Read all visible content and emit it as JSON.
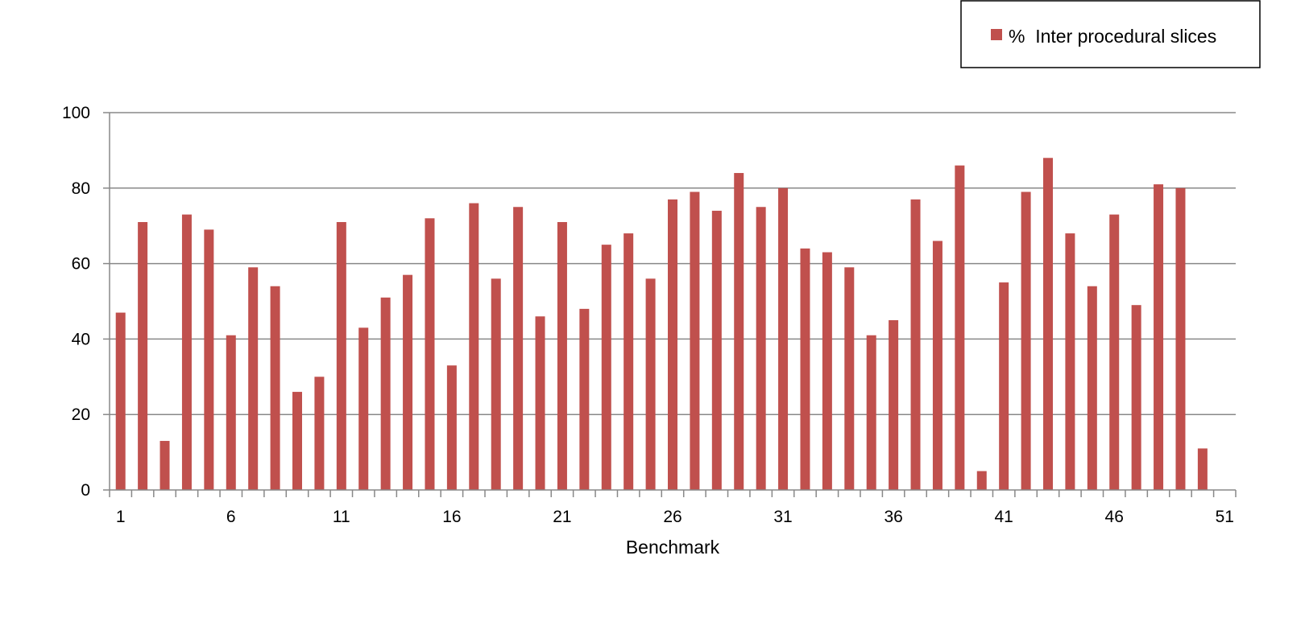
{
  "chart_data": {
    "type": "bar",
    "title": "",
    "xlabel": "Benchmark",
    "ylabel": "",
    "categories": [
      1,
      2,
      3,
      4,
      5,
      6,
      7,
      8,
      9,
      10,
      11,
      12,
      13,
      14,
      15,
      16,
      17,
      18,
      19,
      20,
      21,
      22,
      23,
      24,
      25,
      26,
      27,
      28,
      29,
      30,
      31,
      32,
      33,
      34,
      35,
      36,
      37,
      38,
      39,
      40,
      41,
      42,
      43,
      44,
      45,
      46,
      47,
      48,
      49,
      50
    ],
    "x_tick_labels": [
      "1",
      "6",
      "11",
      "16",
      "21",
      "26",
      "31",
      "36",
      "41",
      "46",
      "51"
    ],
    "series": [
      {
        "name": "%  Inter procedural slices",
        "color": "#c0504d",
        "values": [
          47,
          71,
          13,
          73,
          69,
          41,
          59,
          54,
          26,
          30,
          71,
          43,
          51,
          57,
          72,
          33,
          76,
          56,
          75,
          46,
          71,
          48,
          65,
          68,
          56,
          77,
          79,
          74,
          84,
          75,
          80,
          64,
          63,
          59,
          41,
          45,
          77,
          66,
          86,
          5,
          55,
          79,
          88,
          68,
          54,
          73,
          49,
          81,
          80,
          11
        ]
      }
    ],
    "ylim": [
      0,
      100
    ],
    "y_ticks": [
      0,
      20,
      40,
      60,
      80,
      100
    ],
    "grid": true,
    "legend_position": "top-right"
  }
}
